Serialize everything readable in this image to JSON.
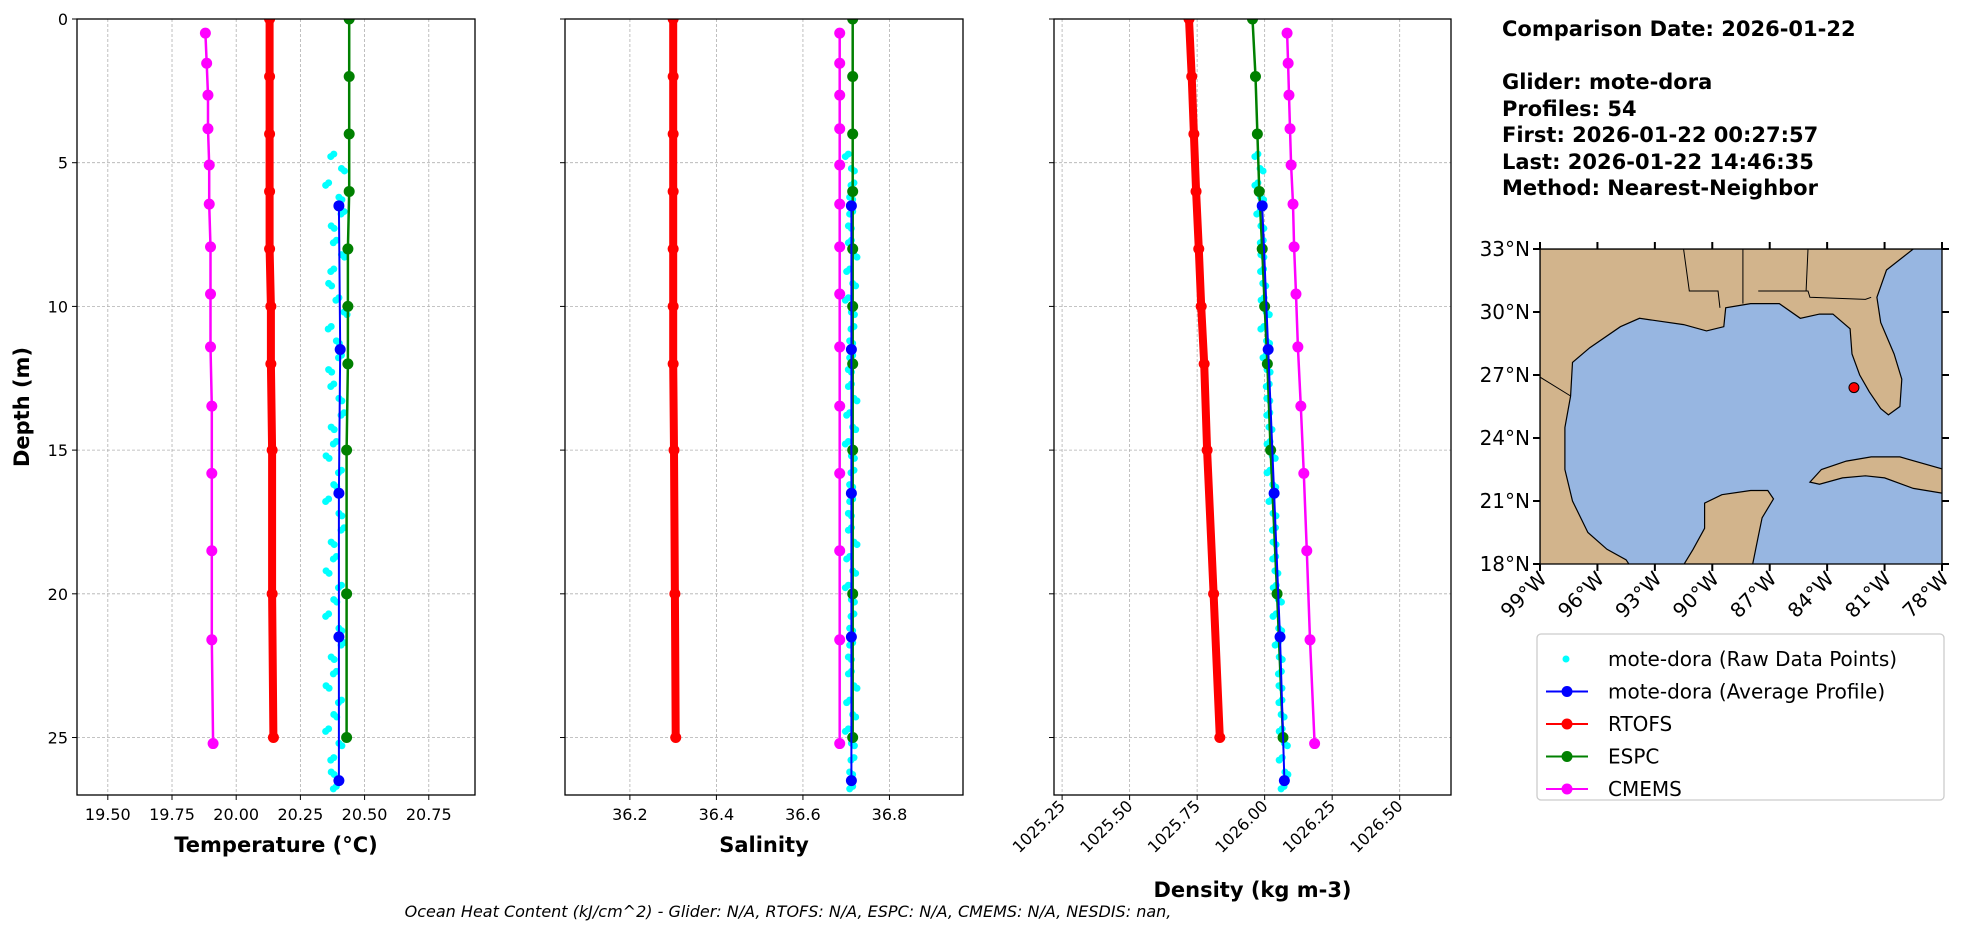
{
  "info": {
    "comparison_date": "Comparison Date: 2026-01-22",
    "glider": "Glider: mote-dora",
    "profiles": "Profiles: 54",
    "first": "First: 2026-01-22 00:27:57",
    "last": "Last: 2026-01-22 14:46:35",
    "method": "Method: Nearest-Neighbor"
  },
  "ohc_text": "Ocean Heat Content (kJ/cm^2) - Glider: N/A,  RTOFS: N/A,  ESPC: N/A,  CMEMS: N/A,  NESDIS: nan,",
  "colors": {
    "raw": "#00ffff",
    "glider": "#0000ff",
    "rtofs": "#ff0000",
    "espc": "#008000",
    "cmems": "#ff00ff",
    "land": "#d2b48c",
    "ocean": "#97b6e1"
  },
  "legend": [
    {
      "label": "mote-dora (Raw Data Points)",
      "color": "#00ffff",
      "style": "dot"
    },
    {
      "label": "mote-dora (Average Profile)",
      "color": "#0000ff",
      "style": "line"
    },
    {
      "label": "RTOFS",
      "color": "#ff0000",
      "style": "line"
    },
    {
      "label": "ESPC",
      "color": "#008000",
      "style": "line"
    },
    {
      "label": "CMEMS",
      "color": "#ff00ff",
      "style": "line"
    }
  ],
  "chart_data": [
    {
      "type": "line",
      "xlabel": "Temperature (°C)",
      "ylabel": "Depth (m)",
      "xlim": [
        19.38,
        20.93
      ],
      "ylim": [
        27,
        0
      ],
      "xticks": [
        "19.50",
        "19.75",
        "20.00",
        "20.25",
        "20.50",
        "20.75"
      ],
      "yticks": [
        "0",
        "5",
        "10",
        "15",
        "20",
        "25"
      ],
      "grid": true,
      "series": [
        {
          "name": "mote-dora (Raw Data Points)",
          "key": "raw",
          "kind": "scatter",
          "values": [
            20.38,
            20.41,
            20.36,
            20.4,
            20.42,
            20.37,
            20.39,
            20.41,
            20.38,
            20.36,
            20.4,
            20.42,
            20.37,
            20.39,
            20.41,
            20.36,
            20.38,
            20.4,
            20.42,
            20.37,
            20.39,
            20.35,
            20.41,
            20.38,
            20.36,
            20.4,
            20.42,
            20.37,
            20.39,
            20.35,
            20.41,
            20.38,
            20.36,
            20.4,
            20.42,
            20.37,
            20.39,
            20.35,
            20.41,
            20.38,
            20.36,
            20.4,
            20.38,
            20.37,
            20.39
          ]
        },
        {
          "name": "RTOFS",
          "key": "rtofs",
          "values": [
            20.13,
            20.13,
            20.13,
            20.13,
            20.13,
            20.135,
            20.135,
            20.14,
            20.14,
            20.145
          ]
        },
        {
          "name": "ESPC",
          "key": "espc",
          "values": [
            20.44,
            20.44,
            20.44,
            20.44,
            20.435,
            20.435,
            20.435,
            20.43,
            20.43,
            20.43
          ]
        },
        {
          "name": "CMEMS",
          "key": "cmems",
          "values": [
            19.88,
            19.885,
            19.89,
            19.89,
            19.895,
            19.895,
            19.9,
            19.9,
            19.9,
            19.905,
            19.905,
            19.905,
            19.905,
            19.91
          ]
        },
        {
          "name": "mote-dora (Average Profile)",
          "key": "glider",
          "values": [
            20.4,
            20.405,
            20.4,
            20.4,
            20.4
          ]
        }
      ]
    },
    {
      "type": "line",
      "xlabel": "Salinity",
      "xlim": [
        36.05,
        36.97
      ],
      "ylim": [
        27,
        0
      ],
      "xticks": [
        "36.2",
        "36.4",
        "36.6",
        "36.8"
      ],
      "grid": true,
      "series": [
        {
          "name": "mote-dora (Raw Data Points)",
          "key": "raw",
          "kind": "scatter",
          "values": [
            36.705,
            36.712,
            36.718,
            36.708,
            36.715,
            36.705,
            36.712,
            36.718,
            36.708,
            36.715,
            36.705,
            36.712,
            36.718,
            36.708,
            36.715,
            36.705,
            36.712,
            36.718,
            36.708,
            36.715,
            36.705,
            36.712,
            36.718,
            36.708,
            36.715,
            36.705,
            36.712,
            36.718,
            36.708,
            36.715,
            36.705,
            36.712,
            36.718,
            36.708,
            36.715,
            36.705,
            36.712,
            36.718,
            36.708,
            36.715,
            36.705,
            36.712,
            36.718,
            36.708,
            36.715
          ]
        },
        {
          "name": "RTOFS",
          "key": "rtofs",
          "values": [
            36.3,
            36.3,
            36.3,
            36.3,
            36.3,
            36.3,
            36.3,
            36.302,
            36.304,
            36.306
          ]
        },
        {
          "name": "ESPC",
          "key": "espc",
          "values": [
            36.715,
            36.715,
            36.715,
            36.715,
            36.715,
            36.715,
            36.715,
            36.715,
            36.715,
            36.715
          ]
        },
        {
          "name": "CMEMS",
          "key": "cmems",
          "values": [
            36.685,
            36.685,
            36.685,
            36.685,
            36.685,
            36.685,
            36.685,
            36.685,
            36.685,
            36.685,
            36.685,
            36.685,
            36.685,
            36.685
          ]
        },
        {
          "name": "mote-dora (Average Profile)",
          "key": "glider",
          "values": [
            36.712,
            36.712,
            36.712,
            36.712,
            36.712
          ]
        }
      ]
    },
    {
      "type": "line",
      "xlabel": "Density (kg m-3)",
      "xlim": [
        1025.22,
        1026.69
      ],
      "ylim": [
        27,
        0
      ],
      "xticks": [
        "1025.25",
        "1025.50",
        "1025.75",
        "1026.00",
        "1026.25",
        "1026.50"
      ],
      "grid": true,
      "series": [
        {
          "name": "mote-dora (Raw Data Points)",
          "key": "raw",
          "kind": "scatter",
          "values": [
            1025.975,
            1025.983,
            1025.975,
            1025.985,
            1025.982,
            1025.986,
            1025.995,
            1025.986,
            1025.996,
            1025.993,
            1025.998,
            1026.006,
            1025.997,
            1026.007,
            1026.005,
            1026.009,
            1026.017,
            1026.008,
            1026.019,
            1026.016,
            1026.02,
            1026.028,
            1026.02,
            1026.03,
            1026.027,
            1026.031,
            1026.04,
            1026.031,
            1026.041,
            1026.038,
            1026.043,
            1026.051,
            1026.042,
            1026.052,
            1026.05,
            1026.054,
            1026.062,
            1026.053,
            1026.064,
            1026.061,
            1026.065,
            1026.073,
            1026.065,
            1026.075,
            1026.072
          ]
        },
        {
          "name": "RTOFS",
          "key": "rtofs",
          "values": [
            1025.72,
            1025.73,
            1025.738,
            1025.746,
            1025.756,
            1025.765,
            1025.776,
            1025.787,
            1025.811,
            1025.834
          ]
        },
        {
          "name": "ESPC",
          "key": "espc",
          "values": [
            1025.955,
            1025.966,
            1025.973,
            1025.98,
            1025.991,
            1026.0,
            1026.01,
            1026.022,
            1026.046,
            1026.068
          ]
        },
        {
          "name": "CMEMS",
          "key": "cmems",
          "values": [
            1026.083,
            1026.087,
            1026.09,
            1026.094,
            1026.098,
            1026.105,
            1026.109,
            1026.116,
            1026.123,
            1026.134,
            1026.145,
            1026.156,
            1026.168,
            1026.185
          ]
        },
        {
          "name": "mote-dora (Average Profile)",
          "key": "glider",
          "values": [
            1025.991,
            1026.013,
            1026.035,
            1026.057,
            1026.073
          ]
        }
      ]
    }
  ],
  "depths": {
    "raw": [
      4.7,
      5.2,
      5.7,
      6.2,
      6.7,
      7.2,
      7.7,
      8.2,
      8.7,
      9.2,
      9.7,
      10.2,
      10.7,
      11.2,
      11.7,
      12.2,
      12.7,
      13.2,
      13.7,
      14.2,
      14.7,
      15.2,
      15.7,
      16.2,
      16.7,
      17.2,
      17.7,
      18.2,
      18.7,
      19.2,
      19.7,
      20.2,
      20.7,
      21.2,
      21.7,
      22.2,
      22.7,
      23.2,
      23.7,
      24.2,
      24.7,
      25.2,
      25.7,
      26.2,
      26.7
    ],
    "rtofs": [
      0,
      2,
      4,
      6,
      8,
      10,
      12,
      15,
      20,
      25
    ],
    "espc": [
      0,
      2,
      4,
      6,
      8,
      10,
      12,
      15,
      20,
      25
    ],
    "cmems": [
      0.49,
      1.54,
      2.65,
      3.82,
      5.08,
      6.44,
      7.93,
      9.57,
      11.41,
      13.47,
      15.81,
      18.5,
      21.6,
      25.21
    ],
    "glider": [
      6.5,
      11.5,
      16.5,
      21.5,
      26.5
    ]
  },
  "map": {
    "lon_range": [
      -99,
      -78
    ],
    "lat_range": [
      18,
      33
    ],
    "lat_labels": [
      "18°N",
      "21°N",
      "24°N",
      "27°N",
      "30°N",
      "33°N"
    ],
    "lon_labels": [
      "99°W",
      "96°W",
      "93°W",
      "90°W",
      "87°W",
      "84°W",
      "81°W",
      "78°W"
    ],
    "glider_position": {
      "lon": -82.6,
      "lat": 26.4,
      "color": "#ff0000"
    }
  }
}
